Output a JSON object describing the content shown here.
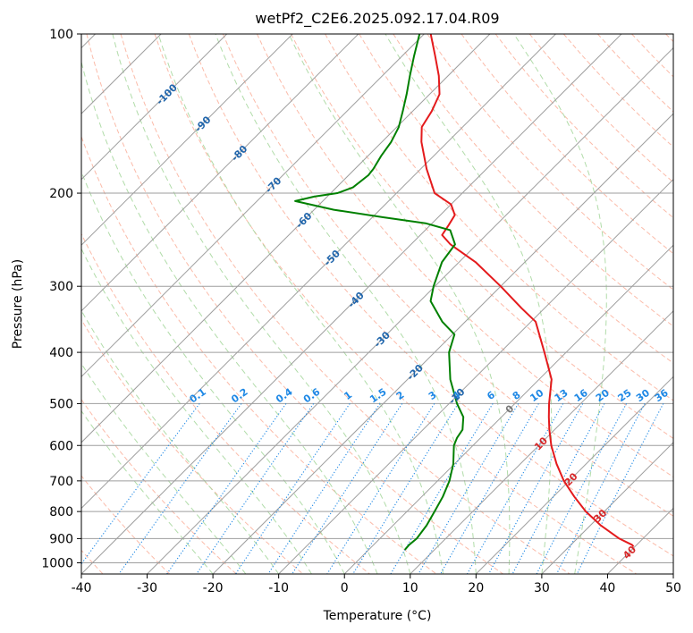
{
  "chart_data": {
    "type": "skew-t",
    "title": "wetPf2_C2E6.2025.092.17.04.R09",
    "xlabel": "Temperature (°C)",
    "ylabel": "Pressure (hPa)",
    "xlim": [
      -40,
      50
    ],
    "ylim": [
      1050,
      100
    ],
    "x_ticks": [
      "-40",
      "-30",
      "-20",
      "-10",
      "0",
      "10",
      "20",
      "30",
      "40",
      "50"
    ],
    "y_ticks": [
      "100",
      "200",
      "300",
      "400",
      "500",
      "600",
      "700",
      "800",
      "900",
      "1000"
    ],
    "colors": {
      "temperature": "#e41a1c",
      "dewpoint": "#008000",
      "isotherm": "#9e9e9e",
      "dry_adiabat": "#fbb4a0",
      "moist_adiabat": "#a8d8a0",
      "mixing_ratio": "#1e88e5",
      "isotherm_label": "#2166ac",
      "red_label": "#d62728"
    },
    "temperature": {
      "name": "Temperature",
      "points": [
        {
          "p": 932,
          "t": 39.8
        },
        {
          "p": 925,
          "t": 39.3
        },
        {
          "p": 900,
          "t": 36.4
        },
        {
          "p": 850,
          "t": 31.6
        },
        {
          "p": 800,
          "t": 27.2
        },
        {
          "p": 750,
          "t": 23.2
        },
        {
          "p": 700,
          "t": 19.2
        },
        {
          "p": 650,
          "t": 15.5
        },
        {
          "p": 600,
          "t": 11.9
        },
        {
          "p": 560,
          "t": 9.2
        },
        {
          "p": 530,
          "t": 7.2
        },
        {
          "p": 500,
          "t": 5.2
        },
        {
          "p": 450,
          "t": 1.9
        },
        {
          "p": 400,
          "t": -3.3
        },
        {
          "p": 350,
          "t": -9.3
        },
        {
          "p": 330,
          "t": -13.5
        },
        {
          "p": 300,
          "t": -20.0
        },
        {
          "p": 270,
          "t": -27.5
        },
        {
          "p": 250,
          "t": -34.0
        },
        {
          "p": 240,
          "t": -36.7
        },
        {
          "p": 230,
          "t": -37.2
        },
        {
          "p": 220,
          "t": -37.8
        },
        {
          "p": 210,
          "t": -40.0
        },
        {
          "p": 200,
          "t": -44.2
        },
        {
          "p": 180,
          "t": -49.1
        },
        {
          "p": 160,
          "t": -54.0
        },
        {
          "p": 150,
          "t": -56.2
        },
        {
          "p": 140,
          "t": -57.1
        },
        {
          "p": 130,
          "t": -58.5
        },
        {
          "p": 120,
          "t": -61.4
        },
        {
          "p": 110,
          "t": -65.0
        },
        {
          "p": 100,
          "t": -69.0
        }
      ]
    },
    "dewpoint": {
      "name": "Dewpoint",
      "points": [
        {
          "p": 945,
          "t": 5.5
        },
        {
          "p": 925,
          "t": 5.4
        },
        {
          "p": 900,
          "t": 5.6
        },
        {
          "p": 850,
          "t": 5.1
        },
        {
          "p": 800,
          "t": 4.2
        },
        {
          "p": 750,
          "t": 3.2
        },
        {
          "p": 700,
          "t": 1.8
        },
        {
          "p": 650,
          "t": -0.2
        },
        {
          "p": 600,
          "t": -2.9
        },
        {
          "p": 580,
          "t": -3.6
        },
        {
          "p": 560,
          "t": -4.0
        },
        {
          "p": 530,
          "t": -5.8
        },
        {
          "p": 500,
          "t": -8.8
        },
        {
          "p": 450,
          "t": -13.5
        },
        {
          "p": 400,
          "t": -17.8
        },
        {
          "p": 370,
          "t": -19.7
        },
        {
          "p": 350,
          "t": -23.5
        },
        {
          "p": 320,
          "t": -28.4
        },
        {
          "p": 300,
          "t": -30.2
        },
        {
          "p": 270,
          "t": -32.6
        },
        {
          "p": 250,
          "t": -33.3
        },
        {
          "p": 235,
          "t": -36.2
        },
        {
          "p": 228,
          "t": -41.0
        },
        {
          "p": 222,
          "t": -48.5
        },
        {
          "p": 215,
          "t": -57.0
        },
        {
          "p": 207,
          "t": -64.2
        },
        {
          "p": 203,
          "t": -62.0
        },
        {
          "p": 200,
          "t": -59.0
        },
        {
          "p": 195,
          "t": -57.5
        },
        {
          "p": 185,
          "t": -57.0
        },
        {
          "p": 180,
          "t": -57.2
        },
        {
          "p": 170,
          "t": -58.0
        },
        {
          "p": 160,
          "t": -58.6
        },
        {
          "p": 150,
          "t": -59.7
        },
        {
          "p": 140,
          "t": -61.5
        },
        {
          "p": 130,
          "t": -63.5
        },
        {
          "p": 120,
          "t": -65.8
        },
        {
          "p": 110,
          "t": -68.2
        },
        {
          "p": 100,
          "t": -70.7
        }
      ]
    },
    "isotherm_labels": [
      {
        "t": -100,
        "text": "-100"
      },
      {
        "t": -90,
        "text": "-90"
      },
      {
        "t": -80,
        "text": "-80"
      },
      {
        "t": -70,
        "text": "-70"
      },
      {
        "t": -60,
        "text": "-60"
      },
      {
        "t": -50,
        "text": "-50"
      },
      {
        "t": -40,
        "text": "-40"
      },
      {
        "t": -30,
        "text": "-30"
      },
      {
        "t": -20,
        "text": "-20"
      },
      {
        "t": -10,
        "text": "-10"
      },
      {
        "t": 0,
        "text": "0"
      },
      {
        "t": 10,
        "text": "10"
      },
      {
        "t": 20,
        "text": "20"
      },
      {
        "t": 30,
        "text": "30"
      },
      {
        "t": 40,
        "text": "40"
      }
    ],
    "mixing_ratios": [
      {
        "w": 0.1,
        "text": "0.1"
      },
      {
        "w": 0.2,
        "text": "0.2"
      },
      {
        "w": 0.4,
        "text": "0.4"
      },
      {
        "w": 0.6,
        "text": "0.6"
      },
      {
        "w": 1,
        "text": "1"
      },
      {
        "w": 1.5,
        "text": "1.5"
      },
      {
        "w": 2,
        "text": "2"
      },
      {
        "w": 3,
        "text": "3"
      },
      {
        "w": 4,
        "text": "4"
      },
      {
        "w": 6,
        "text": "6"
      },
      {
        "w": 8,
        "text": "8"
      },
      {
        "w": 10,
        "text": "10"
      },
      {
        "w": 13,
        "text": "13"
      },
      {
        "w": 16,
        "text": "16"
      },
      {
        "w": 20,
        "text": "20"
      },
      {
        "w": 25,
        "text": "25"
      },
      {
        "w": 30,
        "text": "30"
      },
      {
        "w": 36,
        "text": "36"
      }
    ],
    "grid": true
  }
}
